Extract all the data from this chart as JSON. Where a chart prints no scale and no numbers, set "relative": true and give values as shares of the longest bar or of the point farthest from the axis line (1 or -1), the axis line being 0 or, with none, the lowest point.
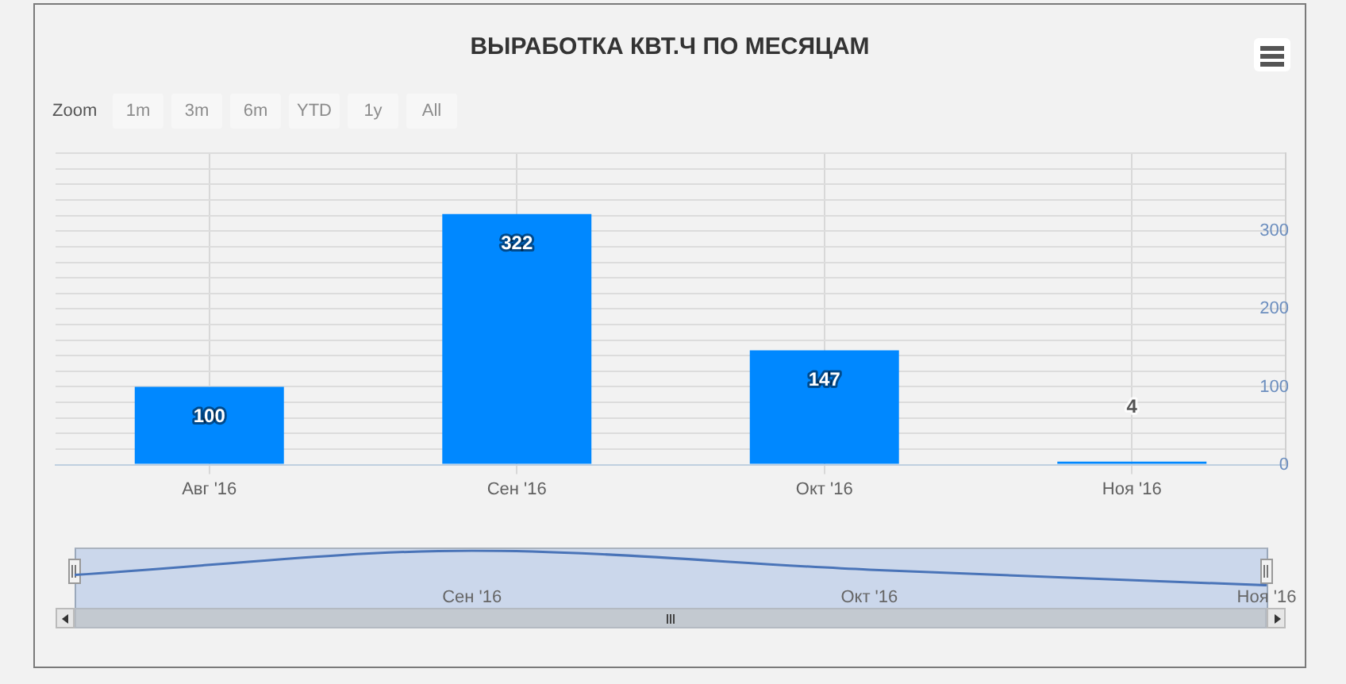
{
  "chart_data": [
    {
      "type": "bar",
      "title": "ВЫРАБОТКА КВТ.Ч ПО МЕСЯЦАМ",
      "annotations": [
        "Zoom",
        "1m",
        "3m",
        "6m",
        "YTD",
        "1y",
        "All"
      ],
      "categories": [
        "Авг '16",
        "Сен '16",
        "Окт '16",
        "Ноя '16"
      ],
      "values": [
        100,
        322,
        147,
        4
      ],
      "color": "#0088ff",
      "ylim": [
        0,
        400
      ],
      "yticks": [
        0,
        {
          "value": 20,
          "label": null
        },
        {
          "value": 40,
          "label": null
        },
        {
          "value": 60,
          "label": null
        },
        {
          "value": 80,
          "label": null
        },
        100,
        {
          "value": 120,
          "label": null
        },
        {
          "value": 140,
          "label": null
        },
        {
          "value": 160,
          "label": null
        },
        {
          "value": 180,
          "label": null
        },
        200,
        {
          "value": 220,
          "label": null
        },
        {
          "value": 240,
          "label": null
        },
        {
          "value": 260,
          "label": null
        },
        {
          "value": 280,
          "label": null
        },
        300,
        {
          "value": 320,
          "label": null
        },
        {
          "value": 340,
          "label": null
        },
        {
          "value": 360,
          "label": null
        },
        {
          "value": 380,
          "label": null
        },
        {
          "value": 400,
          "label": null
        }
      ],
      "grid": true,
      "data_labels": true
    },
    {
      "type": "line",
      "categories": [
        null,
        "Сен '16",
        "Окт '16",
        "Ноя '16"
      ],
      "values": [
        0.3,
        1,
        0.45,
        0
      ],
      "color": "#4a74b8",
      "relative": true,
      "marker": "none"
    }
  ]
}
